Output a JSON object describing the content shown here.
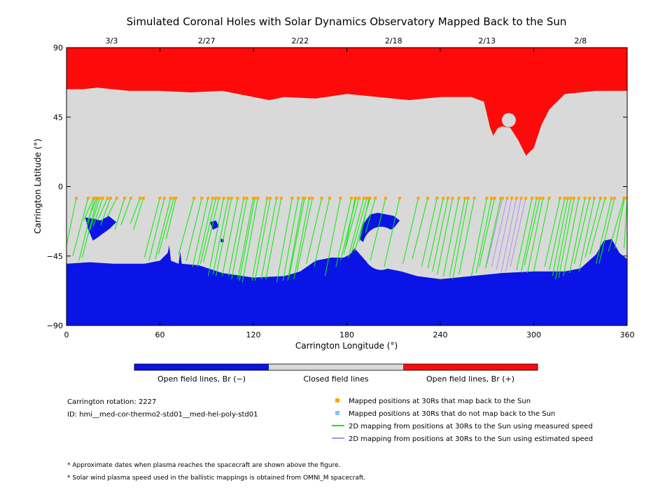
{
  "title": "Simulated Coronal Holes with Solar Dynamics Observatory Mapped Back to the Sun",
  "colors": {
    "open_negative": "#0a14e6",
    "closed": "#d9d9d9",
    "open_positive": "#ff0a0a",
    "mapped_point": "#ffa500",
    "unmapped_point": "#87c3f0",
    "measured_line": "#00ee00",
    "estimated_line": "#b48cf0"
  },
  "chart_data": {
    "type": "heatmap",
    "xlabel": "Carrington Longitude (°)",
    "ylabel": "Carrington Latitude (°)",
    "xlim": [
      0,
      360
    ],
    "ylim": [
      -90,
      90
    ],
    "x_ticks": [
      0,
      60,
      120,
      180,
      240,
      300,
      360
    ],
    "y_ticks": [
      -90,
      -45,
      0,
      45,
      90
    ],
    "y_tick_labels": [
      "−90",
      "−45",
      "0",
      "45",
      "90"
    ],
    "top_dates": [
      {
        "label": "3/3",
        "lon": 29
      },
      {
        "label": "2/27",
        "lon": 90
      },
      {
        "label": "2/22",
        "lon": 150
      },
      {
        "label": "2/18",
        "lon": 210
      },
      {
        "label": "2/13",
        "lon": 270
      },
      {
        "label": "2/8",
        "lon": 330
      }
    ],
    "north_boundary": [
      [
        0,
        63
      ],
      [
        10,
        63
      ],
      [
        20,
        64
      ],
      [
        40,
        62
      ],
      [
        60,
        62
      ],
      [
        80,
        61
      ],
      [
        100,
        62
      ],
      [
        130,
        56
      ],
      [
        140,
        58
      ],
      [
        160,
        57
      ],
      [
        180,
        60
      ],
      [
        200,
        58
      ],
      [
        220,
        56
      ],
      [
        240,
        58
      ],
      [
        260,
        58
      ],
      [
        268,
        55
      ],
      [
        272,
        38
      ],
      [
        274,
        33
      ],
      [
        277,
        38
      ],
      [
        280,
        39
      ],
      [
        285,
        38
      ],
      [
        290,
        30
      ],
      [
        295,
        20
      ],
      [
        300,
        25
      ],
      [
        305,
        40
      ],
      [
        310,
        50
      ],
      [
        320,
        60
      ],
      [
        340,
        62
      ],
      [
        360,
        62
      ]
    ],
    "polar_hole_island": {
      "lon": 284,
      "lat": 43,
      "r": 4.5
    },
    "south_boundary": [
      [
        0,
        -50
      ],
      [
        15,
        -49
      ],
      [
        30,
        -50
      ],
      [
        50,
        -50
      ],
      [
        60,
        -48
      ],
      [
        65,
        -43
      ],
      [
        66,
        -38
      ],
      [
        67,
        -48
      ],
      [
        72,
        -50
      ],
      [
        73,
        -42
      ],
      [
        74,
        -50
      ],
      [
        85,
        -51
      ],
      [
        100,
        -56
      ],
      [
        120,
        -59
      ],
      [
        140,
        -58
      ],
      [
        150,
        -55
      ],
      [
        160,
        -48
      ],
      [
        170,
        -46
      ],
      [
        178,
        -46
      ],
      [
        182,
        -44
      ],
      [
        185,
        -40
      ],
      [
        192,
        -48
      ],
      [
        200,
        -52
      ],
      [
        215,
        -55
      ],
      [
        225,
        -58
      ],
      [
        240,
        -60
      ],
      [
        260,
        -58
      ],
      [
        280,
        -56
      ],
      [
        300,
        -55
      ],
      [
        320,
        -55
      ],
      [
        330,
        -53
      ],
      [
        340,
        -44
      ],
      [
        345,
        -35
      ],
      [
        350,
        -34
      ],
      [
        355,
        -43
      ],
      [
        360,
        -47
      ]
    ],
    "hole_patches": [
      [
        [
          12,
          -20
        ],
        [
          18,
          -21
        ],
        [
          22,
          -22
        ],
        [
          27,
          -19
        ],
        [
          32,
          -23
        ],
        [
          28,
          -27
        ],
        [
          20,
          -33
        ],
        [
          17,
          -35
        ],
        [
          14,
          -28
        ]
      ],
      [
        [
          195,
          -18
        ],
        [
          200,
          -17
        ],
        [
          210,
          -19
        ],
        [
          214,
          -22
        ],
        [
          210,
          -27
        ],
        [
          200,
          -32
        ],
        [
          193,
          -38
        ],
        [
          188,
          -34
        ],
        [
          190,
          -25
        ]
      ],
      [
        [
          92,
          -23
        ],
        [
          96,
          -22
        ],
        [
          98,
          -26
        ],
        [
          94,
          -28
        ]
      ],
      [
        [
          99,
          -34
        ],
        [
          101,
          -34
        ],
        [
          101,
          -36
        ],
        [
          99,
          -36
        ]
      ]
    ],
    "patch_hole": {
      "lon": 202,
      "lat": -40,
      "rx": 12,
      "ry": 14
    },
    "mapping_footpoint_lat": -7.5,
    "measured_mappings": [
      [
        0,
        -38
      ],
      [
        4,
        -45
      ],
      [
        8,
        -48
      ],
      [
        10,
        -46
      ],
      [
        11,
        -22
      ],
      [
        13,
        -24
      ],
      [
        15,
        -28
      ],
      [
        17,
        -26
      ],
      [
        20,
        -22
      ],
      [
        22,
        -25
      ],
      [
        26,
        -20
      ],
      [
        31,
        -28
      ],
      [
        35,
        -25
      ],
      [
        41,
        -24
      ],
      [
        43,
        -28
      ],
      [
        50,
        -46
      ],
      [
        53,
        -48
      ],
      [
        57,
        -47
      ],
      [
        59,
        -44
      ],
      [
        64,
        -34
      ],
      [
        72,
        -44
      ],
      [
        77,
        -48
      ],
      [
        81,
        -52
      ],
      [
        84,
        -52
      ],
      [
        86,
        -50
      ],
      [
        88,
        -49
      ],
      [
        91,
        -58
      ],
      [
        94,
        -57
      ],
      [
        96,
        -58
      ],
      [
        100,
        -58
      ],
      [
        104,
        -58
      ],
      [
        106,
        -60
      ],
      [
        110,
        -60
      ],
      [
        111,
        -61
      ],
      [
        113,
        -62
      ],
      [
        119,
        -61
      ],
      [
        121,
        -61
      ],
      [
        125,
        -60
      ],
      [
        128,
        -60
      ],
      [
        135,
        -62
      ],
      [
        139,
        -61
      ],
      [
        142,
        -61
      ],
      [
        143,
        -58
      ],
      [
        146,
        -60
      ],
      [
        148,
        -55
      ],
      [
        154,
        -50
      ],
      [
        159,
        -52
      ],
      [
        166,
        -58
      ],
      [
        173,
        -52
      ],
      [
        176,
        -48
      ],
      [
        178,
        -44
      ],
      [
        179,
        -40
      ],
      [
        181,
        -46
      ],
      [
        183,
        -43
      ],
      [
        185,
        -42
      ],
      [
        188,
        -36
      ],
      [
        192,
        -30
      ],
      [
        195,
        -48
      ],
      [
        204,
        -52
      ],
      [
        216,
        -50
      ],
      [
        222,
        -47
      ],
      [
        228,
        -52
      ],
      [
        232,
        -53
      ],
      [
        235,
        -55
      ],
      [
        238,
        -57
      ],
      [
        242,
        -58
      ],
      [
        246,
        -58
      ],
      [
        248,
        -60
      ],
      [
        252,
        -57
      ],
      [
        260,
        -58
      ],
      [
        263,
        -56
      ],
      [
        265,
        -52
      ],
      [
        269,
        -53
      ],
      [
        289,
        -54
      ],
      [
        292,
        -55
      ],
      [
        294,
        -51
      ],
      [
        296,
        -56
      ],
      [
        300,
        -55
      ],
      [
        307,
        -52
      ],
      [
        310,
        -54
      ],
      [
        312,
        -58
      ],
      [
        314,
        -60
      ],
      [
        316,
        -59
      ],
      [
        319,
        -58
      ],
      [
        323,
        -56
      ],
      [
        326,
        -50
      ],
      [
        329,
        -55
      ],
      [
        333,
        -46
      ],
      [
        336,
        -44
      ],
      [
        340,
        -50
      ],
      [
        342,
        -50
      ],
      [
        348,
        -42
      ],
      [
        352,
        -40
      ],
      [
        358,
        -40
      ],
      [
        360,
        -38
      ]
    ],
    "estimated_mappings": [
      [
        270,
        -50
      ],
      [
        273,
        -52
      ],
      [
        276,
        -54
      ],
      [
        279,
        -56
      ],
      [
        282,
        -55
      ],
      [
        285,
        -52
      ]
    ],
    "colorbar": [
      {
        "label": "Open field lines, Br (−)",
        "color": "#0a14e6"
      },
      {
        "label": "Closed field lines",
        "color": "#d9d9d9"
      },
      {
        "label": "Open field lines, Br (+)",
        "color": "#ff0a0a"
      }
    ]
  },
  "info": {
    "rotation": "Carrington rotation: 2227",
    "id": "ID: hmi__med-cor-thermo2-std01__med-hel-poly-std01"
  },
  "legend": [
    {
      "label": "Mapped positions at 30Rs that map back to the Sun",
      "kind": "square",
      "color": "#ffa500"
    },
    {
      "label": "Mapped positions at 30Rs that do not map back to the Sun",
      "kind": "square",
      "color": "#87c3f0"
    },
    {
      "label": "2D mapping from positions at 30Rs to the Sun using measured speed",
      "kind": "line",
      "color": "#00ee00"
    },
    {
      "label": "2D mapping from positions at 30Rs to the Sun using estimated speed",
      "kind": "line",
      "color": "#b48cf0"
    }
  ],
  "notes": [
    "* Approximate dates when plasma reaches the spacecraft are shown above the figure.",
    "* Solar wind plasma speed used in the ballistic mappings is obtained from OMNI_M spacecraft."
  ]
}
